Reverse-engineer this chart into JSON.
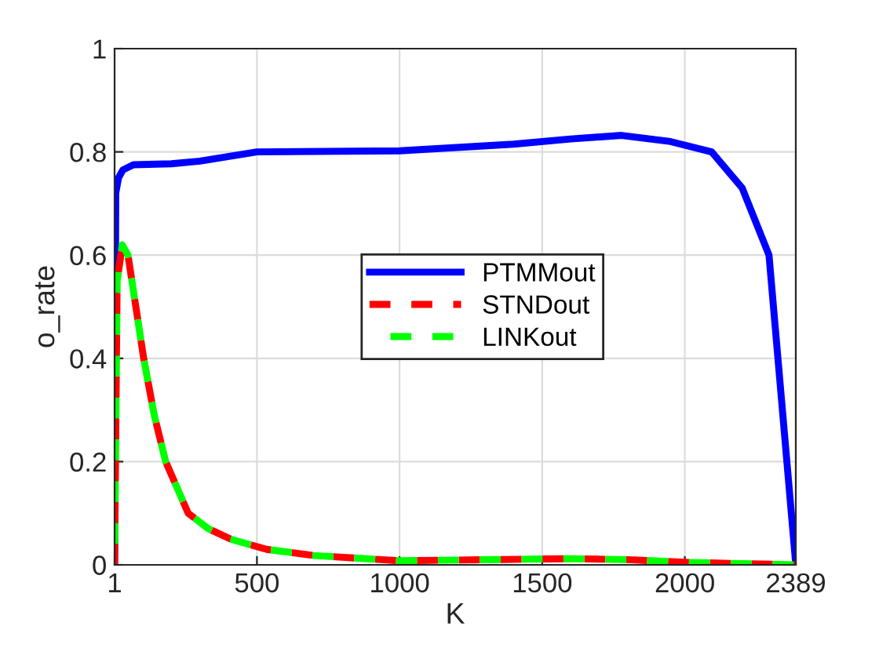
{
  "chart_data": {
    "type": "line",
    "xlabel": "K",
    "ylabel": "o_rate",
    "xlim": [
      1,
      2389
    ],
    "xticks": [
      1,
      500,
      1000,
      1500,
      2000,
      2389
    ],
    "ylim": [
      0,
      1
    ],
    "yticks": [
      0,
      0.2,
      0.4,
      0.6,
      0.8,
      1
    ],
    "grid": true,
    "legend": "center",
    "series": [
      {
        "name": "PTMMout",
        "color": "#0000ff",
        "line_style": "solid",
        "x": [
          1,
          5,
          15,
          30,
          67,
          200,
          300,
          500,
          1000,
          1400,
          1600,
          1778,
          1950,
          2094,
          2201,
          2295,
          2389
        ],
        "values": [
          0,
          0.72,
          0.75,
          0.765,
          0.775,
          0.777,
          0.782,
          0.8,
          0.802,
          0.815,
          0.825,
          0.832,
          0.82,
          0.8,
          0.73,
          0.6,
          0
        ]
      },
      {
        "name": "STNDout",
        "color": "#ff0000",
        "line_style": "dashed",
        "x": [
          1,
          10,
          28,
          48,
          70,
          103,
          140,
          180,
          259,
          330,
          407,
          534,
          700,
          1000,
          1300,
          1600,
          1800,
          2000,
          2389
        ],
        "values": [
          0,
          0.55,
          0.62,
          0.6,
          0.52,
          0.4,
          0.29,
          0.2,
          0.1,
          0.07,
          0.05,
          0.03,
          0.018,
          0.008,
          0.01,
          0.012,
          0.01,
          0.005,
          0
        ]
      },
      {
        "name": "LINKout",
        "color": "#00ff00",
        "line_style": "dashed",
        "x": [
          1,
          10,
          28,
          48,
          70,
          103,
          140,
          180,
          259,
          330,
          407,
          534,
          700,
          1000,
          1300,
          1600,
          1800,
          2000,
          2389
        ],
        "values": [
          0,
          0.55,
          0.62,
          0.6,
          0.52,
          0.4,
          0.29,
          0.2,
          0.1,
          0.07,
          0.05,
          0.03,
          0.018,
          0.008,
          0.01,
          0.012,
          0.01,
          0.005,
          0
        ]
      }
    ]
  }
}
